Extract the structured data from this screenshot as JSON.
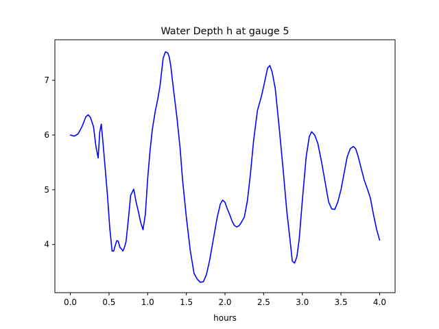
{
  "chart_data": {
    "type": "line",
    "title": "Water Depth h at gauge 5",
    "xlabel": "hours",
    "ylabel": "",
    "xlim": [
      -0.2,
      4.2
    ],
    "ylim": [
      3.12,
      7.74
    ],
    "xticks": [
      0.0,
      0.5,
      1.0,
      1.5,
      2.0,
      2.5,
      3.0,
      3.5,
      4.0
    ],
    "xtick_labels": [
      "0.0",
      "0.5",
      "1.0",
      "1.5",
      "2.0",
      "2.5",
      "3.0",
      "3.5",
      "4.0"
    ],
    "yticks": [
      4,
      5,
      6,
      7
    ],
    "ytick_labels": [
      "4",
      "5",
      "6",
      "7"
    ],
    "grid": false,
    "line_color": "#0000ff",
    "series": [
      {
        "x": [
          0.0,
          0.05,
          0.1,
          0.15,
          0.2,
          0.23,
          0.26,
          0.3,
          0.33,
          0.36,
          0.38,
          0.4,
          0.42,
          0.45,
          0.48,
          0.51,
          0.54,
          0.56,
          0.58,
          0.6,
          0.62,
          0.64,
          0.66,
          0.68,
          0.7,
          0.72,
          0.75,
          0.78,
          0.82,
          0.85,
          0.88,
          0.91,
          0.94,
          0.97,
          1.0,
          1.03,
          1.06,
          1.1,
          1.13,
          1.16,
          1.2,
          1.23,
          1.26,
          1.28,
          1.3,
          1.32,
          1.35,
          1.38,
          1.42,
          1.45,
          1.5,
          1.55,
          1.6,
          1.64,
          1.68,
          1.72,
          1.76,
          1.8,
          1.85,
          1.9,
          1.94,
          1.97,
          2.0,
          2.03,
          2.06,
          2.09,
          2.12,
          2.15,
          2.18,
          2.21,
          2.25,
          2.29,
          2.33,
          2.37,
          2.42,
          2.47,
          2.51,
          2.55,
          2.58,
          2.61,
          2.65,
          2.7,
          2.75,
          2.8,
          2.84,
          2.87,
          2.9,
          2.93,
          2.96,
          3.0,
          3.05,
          3.09,
          3.12,
          3.16,
          3.2,
          3.25,
          3.3,
          3.34,
          3.38,
          3.42,
          3.46,
          3.5,
          3.54,
          3.58,
          3.62,
          3.66,
          3.69,
          3.72,
          3.76,
          3.8,
          3.84,
          3.88,
          3.92,
          3.96,
          4.0
        ],
        "y": [
          6.0,
          5.98,
          6.02,
          6.15,
          6.33,
          6.37,
          6.32,
          6.15,
          5.8,
          5.58,
          6.05,
          6.2,
          5.9,
          5.4,
          4.9,
          4.3,
          3.88,
          3.88,
          3.98,
          4.07,
          4.06,
          3.95,
          3.92,
          3.88,
          3.95,
          4.05,
          4.45,
          4.9,
          5.01,
          4.78,
          4.6,
          4.4,
          4.27,
          4.55,
          5.2,
          5.7,
          6.1,
          6.45,
          6.65,
          6.9,
          7.4,
          7.52,
          7.5,
          7.42,
          7.25,
          7.0,
          6.65,
          6.3,
          5.75,
          5.2,
          4.5,
          3.9,
          3.47,
          3.37,
          3.31,
          3.32,
          3.45,
          3.7,
          4.1,
          4.5,
          4.74,
          4.81,
          4.77,
          4.65,
          4.55,
          4.43,
          4.35,
          4.32,
          4.34,
          4.4,
          4.5,
          4.8,
          5.3,
          5.9,
          6.45,
          6.7,
          6.95,
          7.22,
          7.27,
          7.15,
          6.85,
          6.15,
          5.4,
          4.6,
          4.1,
          3.7,
          3.66,
          3.78,
          4.1,
          4.8,
          5.6,
          5.97,
          6.06,
          6.0,
          5.85,
          5.5,
          5.1,
          4.78,
          4.65,
          4.64,
          4.78,
          5.0,
          5.3,
          5.6,
          5.75,
          5.79,
          5.75,
          5.62,
          5.4,
          5.18,
          5.02,
          4.85,
          4.55,
          4.28,
          4.08
        ]
      }
    ]
  }
}
